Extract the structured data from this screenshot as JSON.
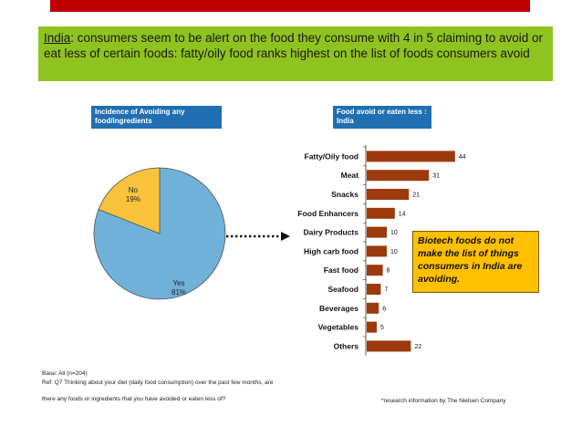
{
  "headline": {
    "country": "India",
    "rest": ": consumers seem to be alert on the food they consume with 4 in 5 claiming to avoid or eat less of certain foods: fatty/oily food ranks highest on the list of foods consumers avoid"
  },
  "colors": {
    "top_bar": "#c00000",
    "headline_bg": "#8fc31f",
    "label_bg": "#1f6fb2",
    "pie_yes": "#6fb1d8",
    "pie_no": "#f7c33a",
    "bar": "#9c3a0e",
    "callout_bg": "#ffc000"
  },
  "chart_data": [
    {
      "type": "pie",
      "title": "Incidence of Avoiding any food/ingredients",
      "slices": [
        {
          "label": "Yes",
          "value": 81,
          "display": "81%",
          "color": "#6fb1d8"
        },
        {
          "label": "No",
          "value": 19,
          "display": "19%",
          "color": "#f7c33a"
        }
      ]
    },
    {
      "type": "bar",
      "orientation": "horizontal",
      "title": "Food avoid or eaten less : India",
      "categories": [
        "Fatty/Oily food",
        "Meat",
        "Snacks",
        "Food Enhancers",
        "Dairy Products",
        "High carb food",
        "Fast food",
        "Seafood",
        "Beverages",
        "Vegetables",
        "Others"
      ],
      "values": [
        44,
        31,
        21,
        14,
        10,
        10,
        8,
        7,
        6,
        5,
        22
      ],
      "xlim": [
        0,
        50
      ],
      "color": "#9c3a0e"
    }
  ],
  "callout": "Biotech foods do not make the list of things consumers in India are avoiding.",
  "footnotes": {
    "base": "Base: All (n=204)",
    "ref_line1": "Ref: Q7 Thinking about your diet (daily food consumption) over the past few months, are",
    "ref_line2": "there any foods or ingredients that you have avoided or eaten less of?",
    "credit": "*research information by The Nielsen Company"
  }
}
